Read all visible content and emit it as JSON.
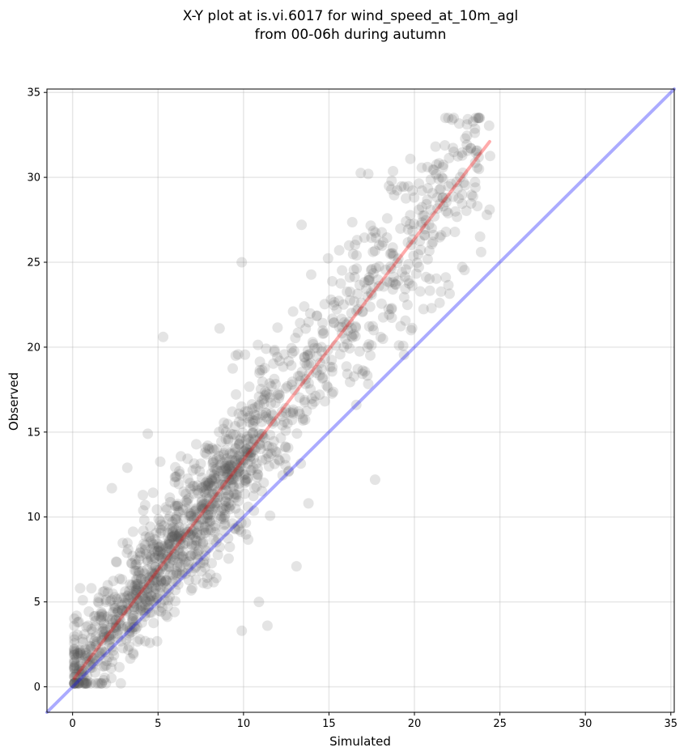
{
  "chart_data": {
    "type": "scatter",
    "title": "X-Y plot at is.vi.6017 for wind_speed_at_10m_agl\nfrom 00-06h during autumn",
    "xlabel": "Simulated",
    "ylabel": "Observed",
    "xlim": [
      -1.5,
      35.2
    ],
    "ylim": [
      -1.5,
      35.2
    ],
    "xticks": [
      0,
      5,
      10,
      15,
      20,
      25,
      30,
      35
    ],
    "yticks": [
      0,
      5,
      10,
      15,
      20,
      25,
      30,
      35
    ],
    "grid": true,
    "legend": "none",
    "point_color": "#555555",
    "point_alpha": 0.16,
    "sample_points": [
      [
        0.1,
        2.2
      ],
      [
        0.3,
        3.8
      ],
      [
        0.6,
        5.1
      ],
      [
        0.9,
        3.6
      ],
      [
        1.1,
        5.8
      ],
      [
        1.6,
        0.2
      ],
      [
        2.3,
        11.7
      ],
      [
        3.2,
        12.9
      ],
      [
        4.4,
        14.9
      ],
      [
        5.3,
        20.6
      ],
      [
        8.6,
        21.1
      ],
      [
        9.9,
        25.0
      ],
      [
        9.9,
        3.3
      ],
      [
        10.9,
        5.0
      ],
      [
        11.4,
        3.6
      ],
      [
        13.1,
        7.1
      ],
      [
        17.7,
        12.2
      ],
      [
        13.8,
        10.8
      ],
      [
        13.4,
        27.2
      ],
      [
        17.3,
        30.2
      ],
      [
        22.2,
        33.4
      ],
      [
        22.3,
        31.5
      ],
      [
        24.4,
        28.1
      ],
      [
        23.9,
        25.6
      ],
      [
        21.0,
        22.3
      ],
      [
        19.8,
        21.0
      ],
      [
        16.6,
        16.6
      ],
      [
        19.1,
        20.1
      ],
      [
        12.9,
        22.1
      ],
      [
        15.6,
        25.7
      ]
    ],
    "lines": [
      {
        "name": "regression",
        "color": "#ff0000",
        "alpha": 0.33,
        "x": [
          0.1,
          24.4
        ],
        "y": [
          0.5,
          32.1
        ]
      },
      {
        "name": "one-to-one",
        "color": "#0000ff",
        "alpha": 0.33,
        "x": [
          -1.5,
          35.2
        ],
        "y": [
          -1.5,
          35.2
        ]
      }
    ]
  }
}
